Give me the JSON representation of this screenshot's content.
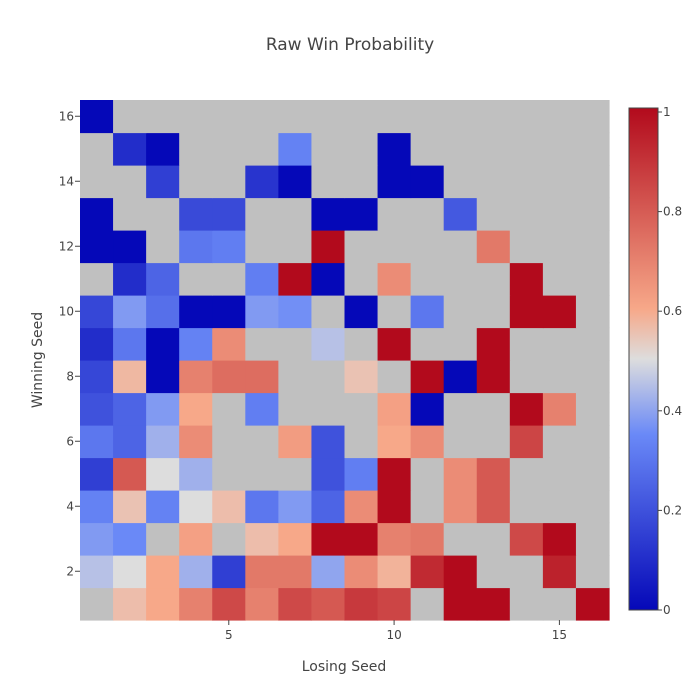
{
  "chart_data": {
    "type": "heatmap",
    "title": "Raw Win Probability",
    "xlabel": "Losing Seed",
    "ylabel": "Winning Seed",
    "x": [
      1,
      2,
      3,
      4,
      5,
      6,
      7,
      8,
      9,
      10,
      11,
      12,
      13,
      14,
      15,
      16
    ],
    "y": [
      1,
      2,
      3,
      4,
      5,
      6,
      7,
      8,
      9,
      10,
      11,
      12,
      13,
      14,
      15,
      16
    ],
    "xlim": [
      0.5,
      16.5
    ],
    "ylim": [
      0.5,
      16.5
    ],
    "xticks": [
      5,
      10,
      15
    ],
    "xtick_labels": [
      "5",
      "10",
      "15"
    ],
    "yticks": [
      2,
      4,
      6,
      8,
      10,
      12,
      14,
      16
    ],
    "ytick_labels": [
      "2",
      "4",
      "6",
      "8",
      "10",
      "12",
      "14",
      "16"
    ],
    "zlim": [
      0,
      1
    ],
    "colorbar_ticks": [
      0,
      0.2,
      0.4,
      0.6,
      0.8,
      1
    ],
    "colorbar_tick_labels": [
      "0",
      "0.2",
      "0.4",
      "0.6",
      "0.8",
      "1"
    ],
    "missing_color": "#c0c0c0",
    "colorscale": [
      [
        0,
        "#0508b8"
      ],
      [
        0.35,
        "#6a89f7"
      ],
      [
        0.5,
        "#dddddd"
      ],
      [
        0.6,
        "#f7a889"
      ],
      [
        1,
        "#b20a1c"
      ]
    ],
    "z": [
      [
        null,
        0.56,
        0.6,
        0.7,
        0.84,
        0.7,
        0.84,
        0.8,
        0.88,
        0.85,
        null,
        1,
        1,
        null,
        null,
        1
      ],
      [
        0.45,
        0.5,
        0.6,
        0.42,
        0.15,
        0.72,
        0.72,
        0.4,
        0.67,
        0.58,
        0.92,
        1,
        null,
        null,
        0.94,
        null
      ],
      [
        0.38,
        0.35,
        null,
        0.62,
        null,
        0.56,
        0.6,
        1,
        1,
        0.7,
        0.72,
        null,
        null,
        0.84,
        1,
        null
      ],
      [
        0.33,
        0.55,
        0.33,
        0.5,
        0.56,
        0.3,
        0.38,
        0.25,
        0.67,
        1,
        null,
        0.67,
        0.8,
        null,
        null,
        null
      ],
      [
        0.15,
        0.8,
        0.5,
        0.42,
        null,
        null,
        null,
        0.2,
        0.32,
        1,
        null,
        0.67,
        0.8,
        null,
        null,
        null
      ],
      [
        0.3,
        0.25,
        0.42,
        0.67,
        null,
        null,
        0.63,
        0.2,
        null,
        0.6,
        0.67,
        null,
        null,
        0.85,
        null,
        null
      ],
      [
        0.2,
        0.25,
        0.38,
        0.6,
        null,
        0.32,
        null,
        null,
        null,
        0.62,
        0,
        null,
        null,
        1,
        0.7,
        null
      ],
      [
        0.17,
        0.57,
        0,
        0.7,
        0.75,
        0.75,
        null,
        null,
        0.55,
        null,
        1,
        0,
        1,
        null,
        null,
        null
      ],
      [
        0.1,
        0.3,
        0,
        0.33,
        0.67,
        null,
        null,
        0.45,
        null,
        1,
        null,
        null,
        1,
        null,
        null,
        null
      ],
      [
        0.17,
        0.38,
        0.28,
        0,
        0,
        0.38,
        0.36,
        null,
        0,
        null,
        0.3,
        null,
        null,
        1,
        1,
        null
      ],
      [
        null,
        0.1,
        0.25,
        null,
        null,
        0.32,
        1,
        0,
        null,
        0.67,
        null,
        null,
        null,
        1,
        null,
        null
      ],
      [
        0,
        0,
        null,
        0.3,
        0.32,
        null,
        null,
        1,
        null,
        null,
        null,
        null,
        0.72,
        null,
        null,
        null
      ],
      [
        0,
        null,
        null,
        0.18,
        0.18,
        null,
        null,
        0,
        0,
        null,
        null,
        0.22,
        null,
        null,
        null,
        null
      ],
      [
        null,
        null,
        0.15,
        null,
        null,
        0.12,
        0,
        null,
        null,
        0,
        0,
        null,
        null,
        null,
        null,
        null
      ],
      [
        null,
        0.1,
        0,
        null,
        null,
        null,
        0.33,
        null,
        null,
        0,
        null,
        null,
        null,
        null,
        null,
        null
      ],
      [
        0,
        null,
        null,
        null,
        null,
        null,
        null,
        null,
        null,
        null,
        null,
        null,
        null,
        null,
        null,
        null
      ]
    ]
  }
}
